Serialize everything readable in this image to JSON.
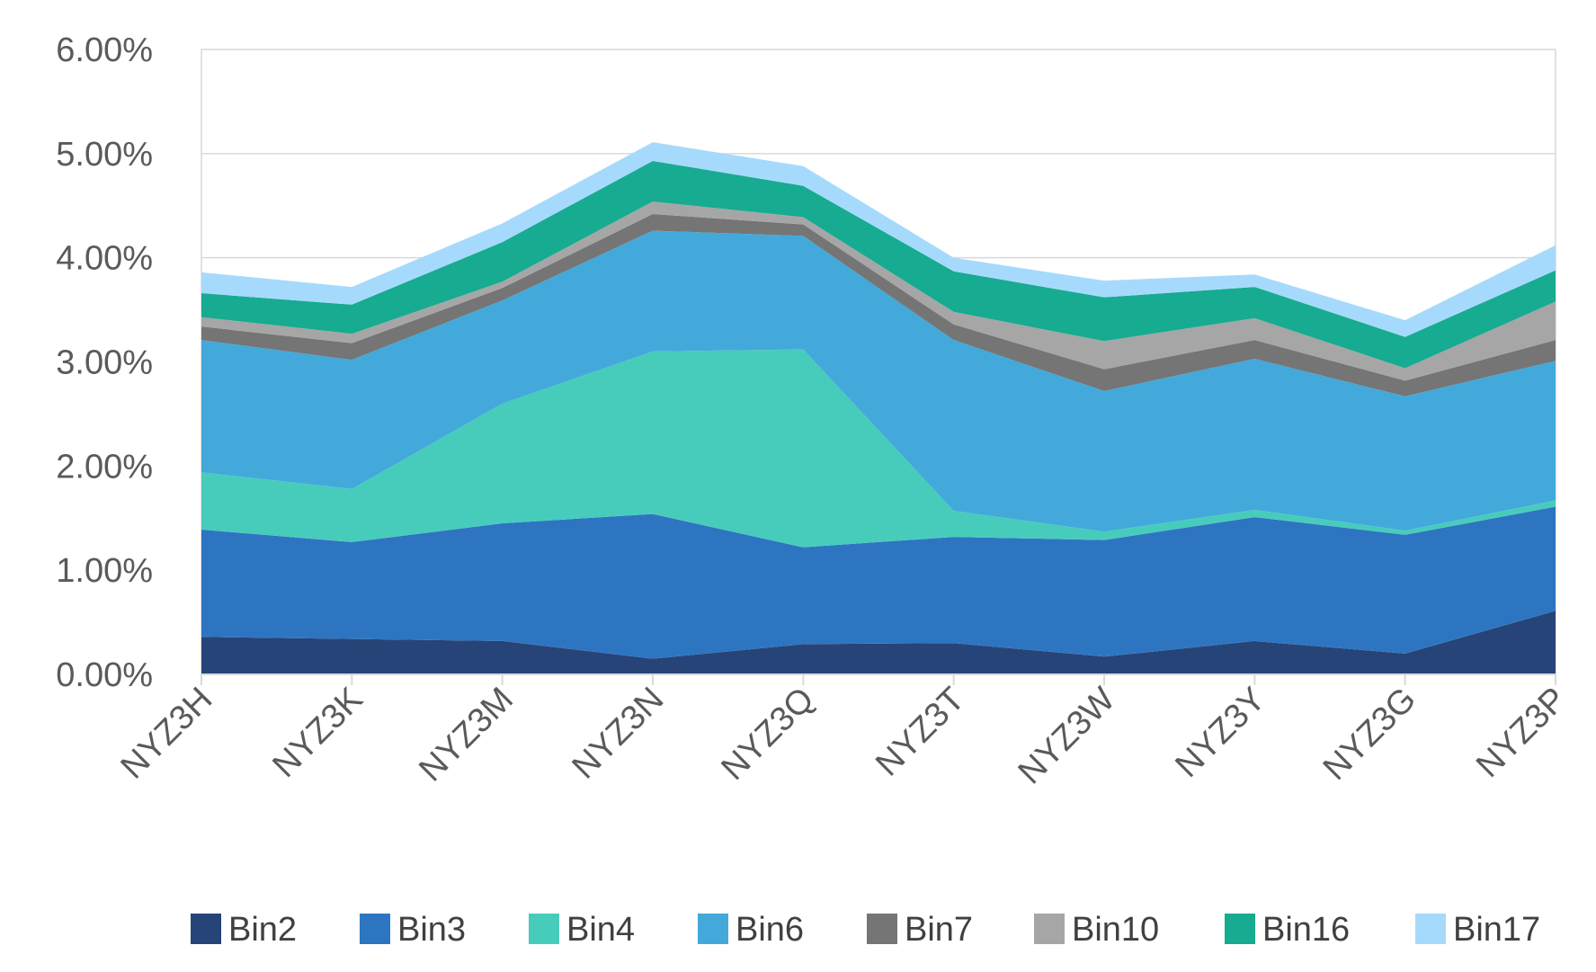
{
  "chart_data": {
    "type": "area",
    "stacked": true,
    "categories": [
      "NYZ3H",
      "NYZ3K",
      "NYZ3M",
      "NYZ3N",
      "NYZ3Q",
      "NYZ3T",
      "NYZ3W",
      "NYZ3Y",
      "NYZ3G",
      "NYZ3P"
    ],
    "ylim": [
      0,
      6
    ],
    "yticks": [
      "0.00%",
      "1.00%",
      "2.00%",
      "3.00%",
      "4.00%",
      "5.00%",
      "6.00%"
    ],
    "grid": true,
    "legend_position": "bottom",
    "series": [
      {
        "name": "Bin2",
        "color": "#264478",
        "values": [
          0.36,
          0.34,
          0.32,
          0.15,
          0.29,
          0.3,
          0.17,
          0.32,
          0.2,
          0.61
        ]
      },
      {
        "name": "Bin3",
        "color": "#2e75c1",
        "values": [
          1.03,
          0.93,
          1.13,
          1.39,
          0.93,
          1.02,
          1.12,
          1.19,
          1.14,
          1.0
        ]
      },
      {
        "name": "Bin4",
        "color": "#47ccbc",
        "values": [
          0.55,
          0.51,
          1.15,
          1.56,
          1.9,
          0.25,
          0.08,
          0.07,
          0.04,
          0.06
        ]
      },
      {
        "name": "Bin6",
        "color": "#43a9da",
        "values": [
          1.27,
          1.24,
          0.99,
          1.16,
          1.09,
          1.64,
          1.35,
          1.45,
          1.29,
          1.34
        ]
      },
      {
        "name": "Bin7",
        "color": "#757575",
        "values": [
          0.13,
          0.16,
          0.12,
          0.16,
          0.11,
          0.15,
          0.21,
          0.18,
          0.15,
          0.2
        ]
      },
      {
        "name": "Bin10",
        "color": "#a6a6a6",
        "values": [
          0.09,
          0.09,
          0.06,
          0.12,
          0.07,
          0.12,
          0.27,
          0.21,
          0.12,
          0.37
        ]
      },
      {
        "name": "Bin16",
        "color": "#17ab91",
        "values": [
          0.23,
          0.28,
          0.38,
          0.39,
          0.3,
          0.39,
          0.42,
          0.3,
          0.3,
          0.3
        ]
      },
      {
        "name": "Bin17",
        "color": "#a6dafc",
        "values": [
          0.2,
          0.17,
          0.18,
          0.18,
          0.19,
          0.13,
          0.16,
          0.12,
          0.16,
          0.24
        ]
      }
    ]
  }
}
